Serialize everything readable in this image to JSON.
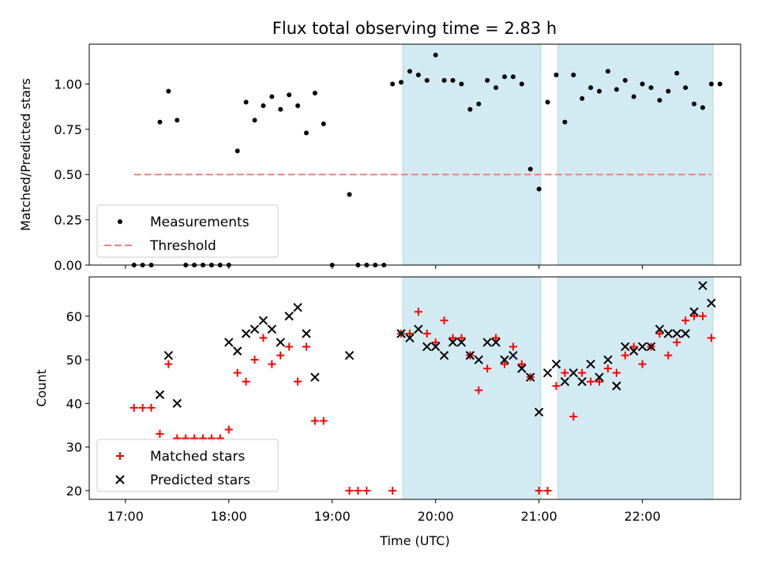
{
  "title": "Flux total observing time = 2.83 h",
  "chart_data": [
    {
      "type": "scatter",
      "ylabel": "Matched/Predicted stars",
      "ylim": [
        0,
        1.22
      ],
      "yticks": [
        0.0,
        0.25,
        0.5,
        0.75,
        1.0
      ],
      "ytick_labels": [
        "0.00",
        "0.25",
        "0.50",
        "0.75",
        "1.00"
      ],
      "xlim_hours": [
        16.65,
        22.95
      ],
      "xticks_hours": [
        17,
        18,
        19,
        20,
        21,
        22
      ],
      "grid": false,
      "legend_position": "lower-left",
      "shaded_regions": [
        {
          "start": "19:41",
          "end": "21:01",
          "color": "#add8e6"
        },
        {
          "start": "21:11",
          "end": "22:41",
          "color": "#add8e6"
        }
      ],
      "series": [
        {
          "name": "Measurements",
          "marker": "dot",
          "color": "#000000",
          "x": [
            "17:05",
            "17:10",
            "17:15",
            "17:20",
            "17:25",
            "17:30",
            "17:35",
            "17:40",
            "17:45",
            "17:50",
            "17:55",
            "18:00",
            "18:05",
            "18:10",
            "18:15",
            "18:20",
            "18:25",
            "18:30",
            "18:35",
            "18:40",
            "18:45",
            "18:50",
            "18:55",
            "19:00",
            "19:10",
            "19:15",
            "19:20",
            "19:25",
            "19:30",
            "19:35",
            "19:40",
            "19:45",
            "19:50",
            "19:55",
            "20:00",
            "20:05",
            "20:10",
            "20:15",
            "20:20",
            "20:25",
            "20:30",
            "20:35",
            "20:40",
            "20:45",
            "20:50",
            "20:55",
            "21:00",
            "21:05",
            "21:10",
            "21:15",
            "21:20",
            "21:25",
            "21:30",
            "21:35",
            "21:40",
            "21:45",
            "21:50",
            "21:55",
            "22:00",
            "22:05",
            "22:10",
            "22:15",
            "22:20",
            "22:25",
            "22:30",
            "22:35",
            "22:40",
            "22:45"
          ],
          "y": [
            0.0,
            0.0,
            0.0,
            0.79,
            0.96,
            0.8,
            0.0,
            0.0,
            0.0,
            0.0,
            0.0,
            0.0,
            0.63,
            0.9,
            0.8,
            0.88,
            0.93,
            0.86,
            0.94,
            0.88,
            0.73,
            0.95,
            0.78,
            0.0,
            0.39,
            0.0,
            0.0,
            0.0,
            0.0,
            1.0,
            1.01,
            1.07,
            1.05,
            1.02,
            1.16,
            1.02,
            1.02,
            1.0,
            0.86,
            0.89,
            1.02,
            0.98,
            1.04,
            1.04,
            1.0,
            0.53,
            0.42,
            0.9,
            1.05,
            0.79,
            1.05,
            0.92,
            0.98,
            0.96,
            1.07,
            0.97,
            1.02,
            0.93,
            1.0,
            0.98,
            0.91,
            0.96,
            1.06,
            0.98,
            0.89,
            0.87,
            1.0,
            1.0
          ]
        },
        {
          "name": "Threshold",
          "type": "line",
          "style": "dashed",
          "color": "#f08080",
          "x": [
            "17:05",
            "22:40"
          ],
          "y": [
            0.5,
            0.5
          ]
        }
      ]
    },
    {
      "type": "scatter",
      "xlabel": "Time (UTC)",
      "ylabel": "Count",
      "ylim": [
        18,
        69
      ],
      "yticks": [
        20,
        30,
        40,
        50,
        60
      ],
      "ytick_labels": [
        "20",
        "30",
        "40",
        "50",
        "60"
      ],
      "xlim_hours": [
        16.65,
        22.95
      ],
      "xticks_hours": [
        17,
        18,
        19,
        20,
        21,
        22
      ],
      "xtick_labels": [
        "17:00",
        "18:00",
        "19:00",
        "20:00",
        "21:00",
        "22:00"
      ],
      "grid": false,
      "legend_position": "lower-left",
      "shaded_regions": [
        {
          "start": "19:41",
          "end": "21:01",
          "color": "#add8e6"
        },
        {
          "start": "21:11",
          "end": "22:41",
          "color": "#add8e6"
        }
      ],
      "series": [
        {
          "name": "Matched stars",
          "marker": "plus",
          "color": "#ff0000",
          "x": [
            "17:05",
            "17:10",
            "17:15",
            "17:20",
            "17:25",
            "17:30",
            "17:35",
            "17:40",
            "17:45",
            "17:50",
            "17:55",
            "18:00",
            "18:05",
            "18:10",
            "18:15",
            "18:20",
            "18:25",
            "18:30",
            "18:35",
            "18:40",
            "18:45",
            "18:50",
            "18:55",
            "19:10",
            "19:15",
            "19:20",
            "19:35",
            "19:40",
            "19:45",
            "19:50",
            "19:55",
            "20:00",
            "20:05",
            "20:10",
            "20:15",
            "20:20",
            "20:25",
            "20:30",
            "20:35",
            "20:40",
            "20:45",
            "20:50",
            "20:55",
            "21:00",
            "21:05",
            "21:10",
            "21:15",
            "21:20",
            "21:25",
            "21:30",
            "21:35",
            "21:40",
            "21:45",
            "21:50",
            "21:55",
            "22:00",
            "22:05",
            "22:10",
            "22:15",
            "22:20",
            "22:25",
            "22:30",
            "22:35",
            "22:40"
          ],
          "y": [
            39,
            39,
            39,
            33,
            49,
            32,
            32,
            32,
            32,
            32,
            32,
            34,
            47,
            45,
            50,
            55,
            49,
            51,
            53,
            45,
            53,
            36,
            36,
            20,
            20,
            20,
            20,
            56,
            56,
            61,
            56,
            54,
            59,
            55,
            55,
            51,
            43,
            48,
            55,
            49,
            53,
            49,
            46,
            20,
            20,
            44,
            47,
            37,
            47,
            45,
            45,
            48,
            47,
            51,
            53,
            49,
            53,
            56,
            51,
            54,
            59,
            60,
            60,
            55
          ]
        },
        {
          "name": "Predicted stars",
          "marker": "x",
          "color": "#000000",
          "x": [
            "17:20",
            "17:25",
            "17:30",
            "18:00",
            "18:05",
            "18:10",
            "18:15",
            "18:20",
            "18:25",
            "18:30",
            "18:35",
            "18:40",
            "18:45",
            "18:50",
            "19:10",
            "19:40",
            "19:45",
            "19:50",
            "19:55",
            "20:00",
            "20:05",
            "20:10",
            "20:15",
            "20:20",
            "20:25",
            "20:30",
            "20:35",
            "20:40",
            "20:45",
            "20:50",
            "20:55",
            "21:00",
            "21:05",
            "21:10",
            "21:15",
            "21:20",
            "21:25",
            "21:30",
            "21:35",
            "21:40",
            "21:45",
            "21:50",
            "21:55",
            "22:00",
            "22:05",
            "22:10",
            "22:15",
            "22:20",
            "22:25",
            "22:30",
            "22:35",
            "22:40"
          ],
          "y": [
            42,
            51,
            40,
            54,
            52,
            56,
            57,
            59,
            57,
            54,
            60,
            62,
            56,
            46,
            51,
            56,
            55,
            57,
            53,
            53,
            51,
            54,
            54,
            51,
            50,
            54,
            54,
            50,
            51,
            48,
            46,
            38,
            47,
            49,
            45,
            47,
            45,
            49,
            46,
            50,
            44,
            53,
            52,
            53,
            53,
            57,
            56,
            56,
            56,
            61,
            67,
            63
          ]
        }
      ]
    }
  ]
}
